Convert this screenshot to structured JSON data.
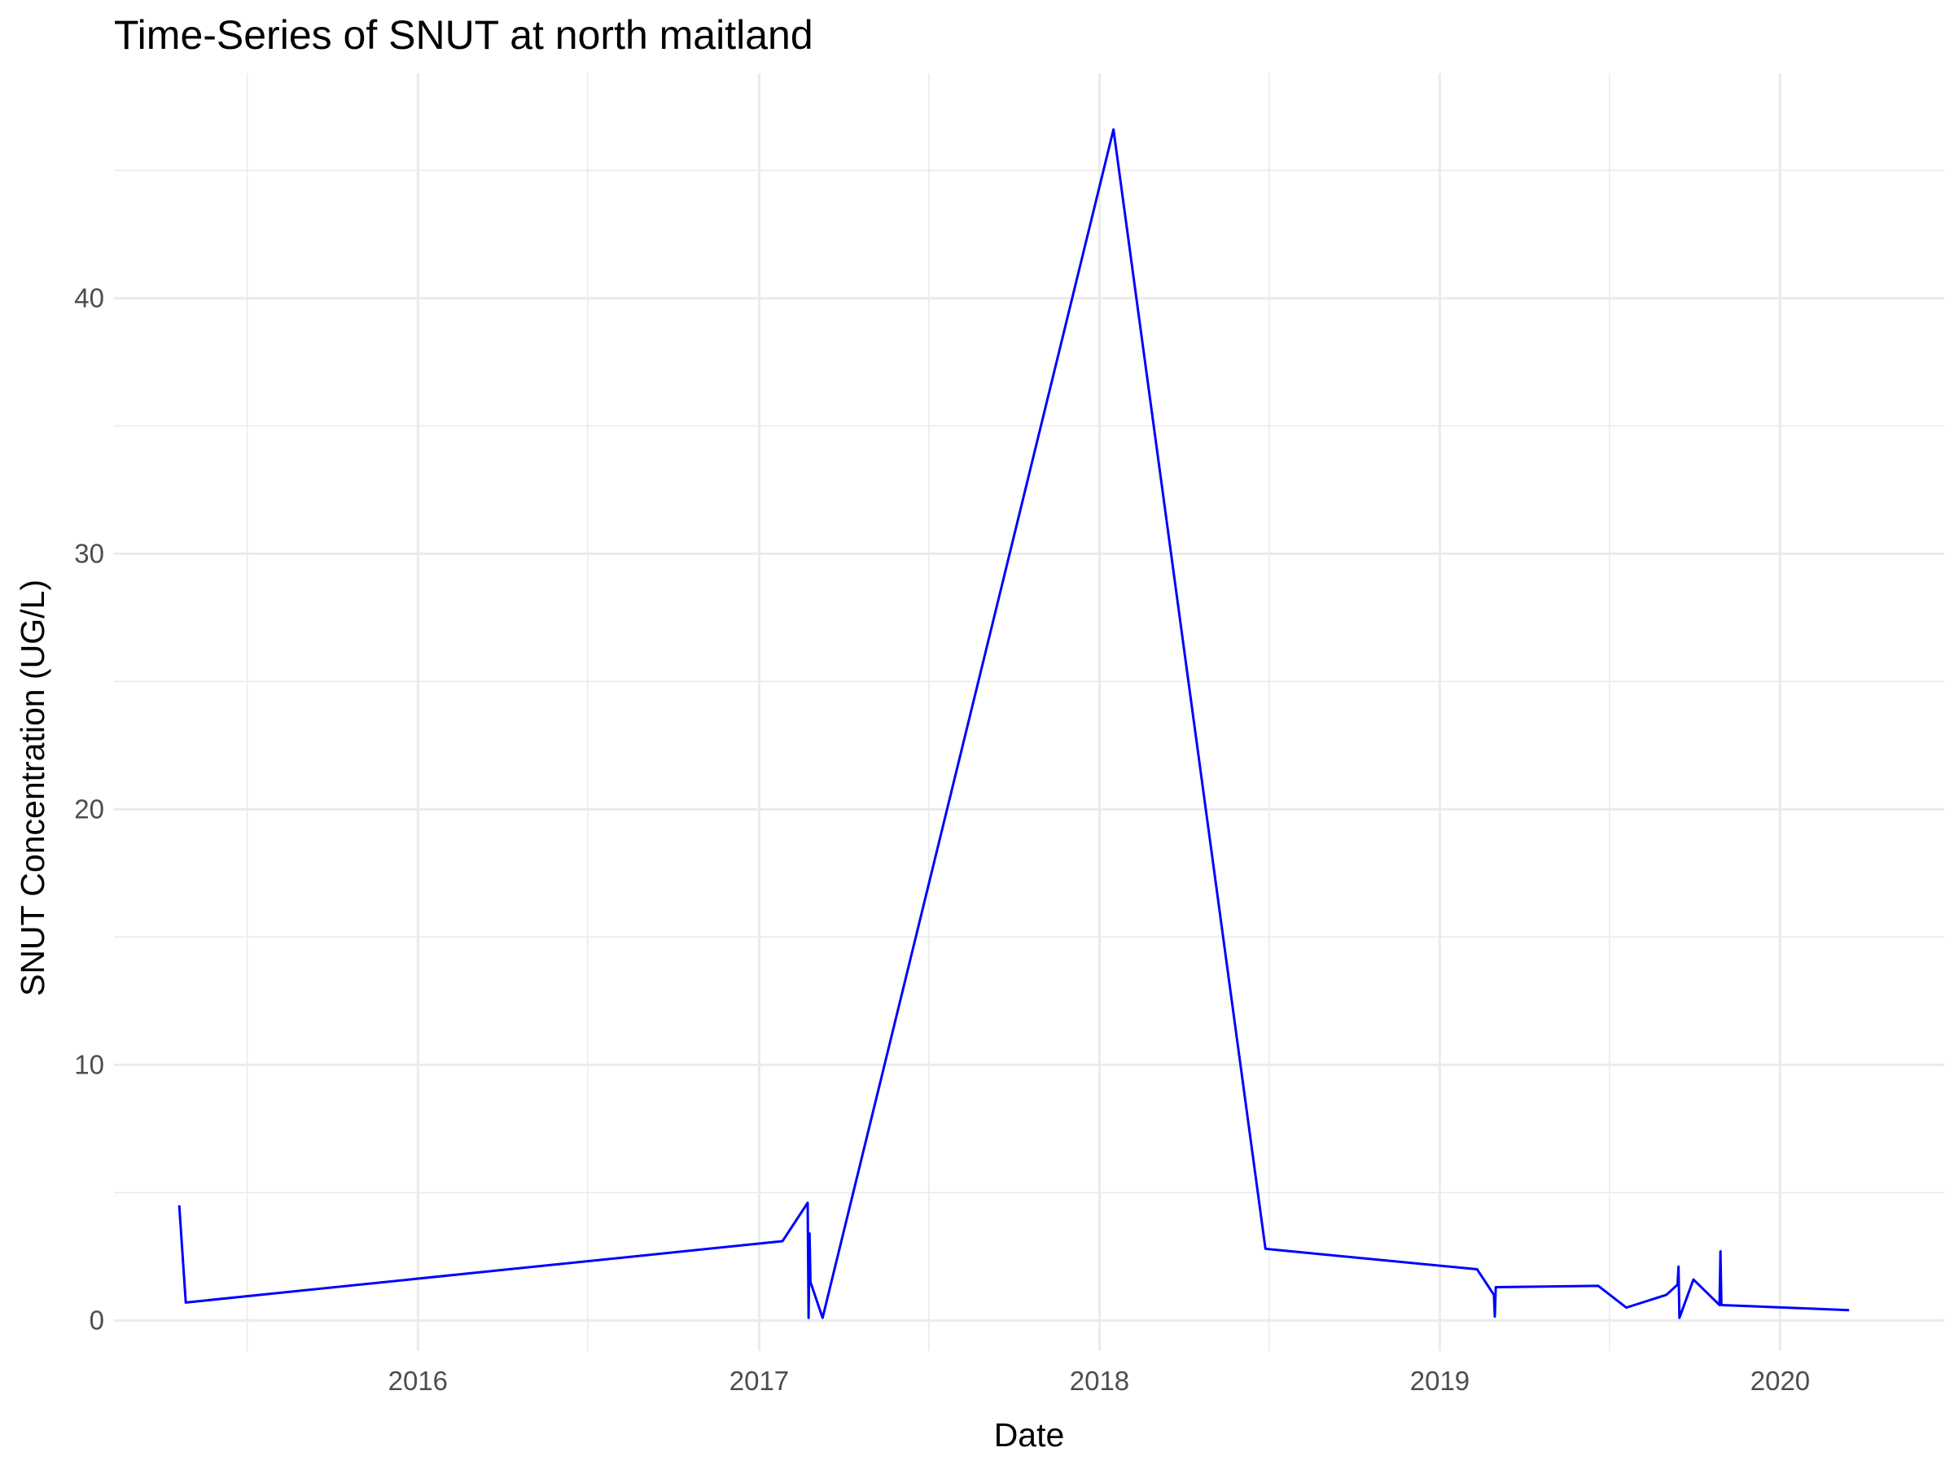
{
  "chart_data": {
    "type": "line",
    "title": "Time-Series of SNUT at north maitland",
    "xlabel": "Date",
    "ylabel": "SNUT Concentration (UG/L)",
    "x_axis": {
      "kind": "date",
      "range": [
        "2015-02-09",
        "2020-06-25"
      ],
      "major_ticks": [
        "2016-01-01",
        "2017-01-01",
        "2018-01-01",
        "2019-01-01",
        "2020-01-01"
      ],
      "major_tick_labels": [
        "2016",
        "2017",
        "2018",
        "2019",
        "2020"
      ],
      "minor_ticks": [
        "2015-07-02",
        "2016-07-01",
        "2017-07-02",
        "2018-07-02",
        "2019-07-02"
      ]
    },
    "y_axis": {
      "range": [
        -1.2,
        48.8
      ],
      "major_ticks": [
        0,
        10,
        20,
        30,
        40
      ],
      "major_tick_labels": [
        "0",
        "10",
        "20",
        "30",
        "40"
      ],
      "minor_ticks": [
        5,
        15,
        25,
        35,
        45
      ]
    },
    "grid": true,
    "line_color": "#0000ff",
    "series": [
      {
        "x": [
          "2015-04-20",
          "2015-04-27",
          "2017-01-26",
          "2017-02-22",
          "2017-02-23",
          "2017-02-24",
          "2017-02-25",
          "2017-03-10",
          "2018-01-16",
          "2018-06-28",
          "2019-02-10",
          "2019-02-28",
          "2019-03-01",
          "2019-03-02",
          "2019-06-20",
          "2019-07-20",
          "2019-09-01",
          "2019-09-13",
          "2019-09-14",
          "2019-09-15",
          "2019-09-30",
          "2019-10-28",
          "2019-10-29",
          "2019-10-30",
          "2020-03-15"
        ],
        "y": [
          4.5,
          0.7,
          3.1,
          4.6,
          0.1,
          3.4,
          1.5,
          0.1,
          46.6,
          2.8,
          2.0,
          1.0,
          0.15,
          1.3,
          1.35,
          0.5,
          1.0,
          1.4,
          2.1,
          0.1,
          1.6,
          0.6,
          2.7,
          0.6,
          0.4
        ]
      }
    ]
  }
}
